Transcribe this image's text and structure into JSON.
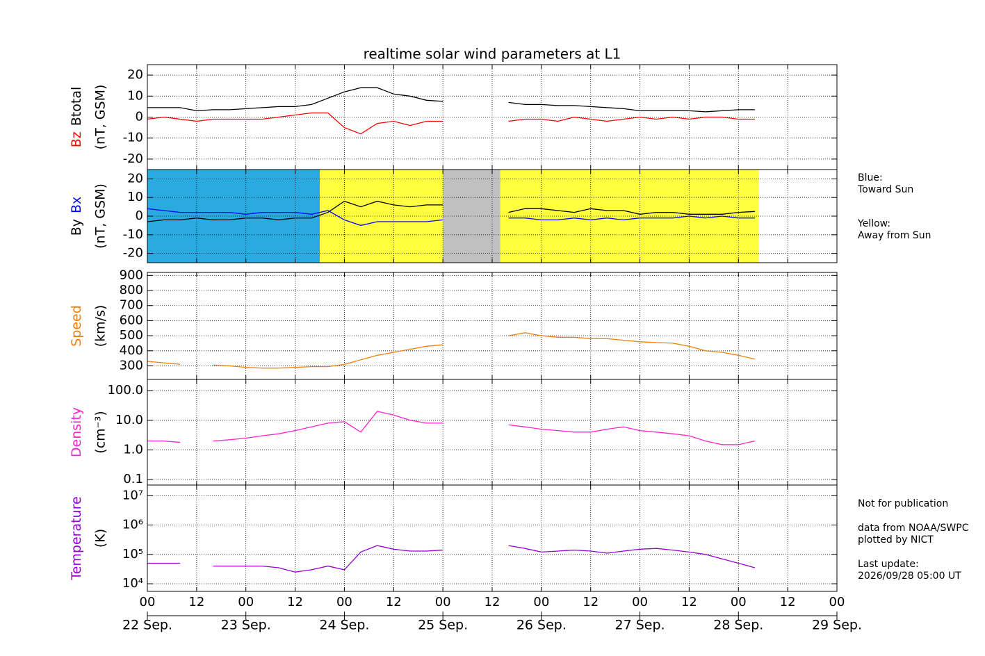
{
  "chart_data": [
    {
      "type": "line",
      "title": "realtime solar wind parameters at L1",
      "ylabel": "(nT, GSM)",
      "x": [
        "22 Sep. 00",
        "22 Sep. 04",
        "22 Sep. 08",
        "22 Sep. 12",
        "22 Sep. 16",
        "22 Sep. 20",
        "23 Sep. 00",
        "23 Sep. 04",
        "23 Sep. 08",
        "23 Sep. 12",
        "23 Sep. 16",
        "23 Sep. 20",
        "24 Sep. 00",
        "24 Sep. 04",
        "24 Sep. 08",
        "24 Sep. 12",
        "24 Sep. 16",
        "24 Sep. 20",
        "25 Sep. 00",
        "25 Sep. 04",
        "25 Sep. 08",
        "25 Sep. 12",
        "25 Sep. 16",
        "25 Sep. 20",
        "26 Sep. 00",
        "26 Sep. 04",
        "26 Sep. 08",
        "26 Sep. 12",
        "26 Sep. 16",
        "26 Sep. 20",
        "27 Sep. 00",
        "27 Sep. 04",
        "27 Sep. 08",
        "27 Sep. 12",
        "27 Sep. 16",
        "27 Sep. 20",
        "28 Sep. 00",
        "28 Sep. 04"
      ],
      "series": [
        {
          "name": "Bz",
          "color": "#ff0000",
          "values": [
            -1,
            0,
            -1,
            -2,
            -1,
            -1,
            -1,
            -1,
            0,
            1,
            2,
            2,
            -5,
            -8,
            -3,
            -2,
            -4,
            -2,
            -2,
            null,
            null,
            null,
            -2,
            -1,
            -1,
            -2,
            0,
            -1,
            -2,
            -1,
            0,
            -1,
            0,
            -1,
            0,
            0,
            -1,
            -1
          ]
        },
        {
          "name": "Btotal",
          "color": "#000000",
          "values": [
            4.5,
            4.5,
            4.5,
            3,
            3.5,
            3.5,
            4,
            4.5,
            5,
            5,
            6,
            9,
            12,
            14,
            14,
            11,
            10,
            8,
            7.5,
            null,
            null,
            null,
            7,
            6,
            6,
            5.5,
            5.5,
            5,
            4.5,
            4,
            3,
            3,
            3,
            3,
            2.5,
            3,
            3.5,
            3.5
          ]
        }
      ],
      "ylim": [
        -25,
        25
      ],
      "yticks": [
        -20,
        -10,
        0,
        10,
        20
      ],
      "grid": true
    },
    {
      "type": "line",
      "ylabel": "(nT, GSM)",
      "x": [
        "22 Sep. 00",
        "22 Sep. 04",
        "22 Sep. 08",
        "22 Sep. 12",
        "22 Sep. 16",
        "22 Sep. 20",
        "23 Sep. 00",
        "23 Sep. 04",
        "23 Sep. 08",
        "23 Sep. 12",
        "23 Sep. 16",
        "23 Sep. 20",
        "24 Sep. 00",
        "24 Sep. 04",
        "24 Sep. 08",
        "24 Sep. 12",
        "24 Sep. 16",
        "24 Sep. 20",
        "25 Sep. 00",
        "25 Sep. 04",
        "25 Sep. 08",
        "25 Sep. 12",
        "25 Sep. 16",
        "25 Sep. 20",
        "26 Sep. 00",
        "26 Sep. 04",
        "26 Sep. 08",
        "26 Sep. 12",
        "26 Sep. 16",
        "26 Sep. 20",
        "27 Sep. 00",
        "27 Sep. 04",
        "27 Sep. 08",
        "27 Sep. 12",
        "27 Sep. 16",
        "27 Sep. 20",
        "28 Sep. 00",
        "28 Sep. 04"
      ],
      "series": [
        {
          "name": "By",
          "color": "#000000",
          "values": [
            -3,
            -2,
            -2,
            -1,
            -2,
            -2,
            -1,
            -1,
            -2,
            -1,
            -1,
            2,
            8,
            5,
            8,
            6,
            5,
            6,
            6,
            null,
            null,
            null,
            2,
            4,
            4,
            3,
            2,
            4,
            3,
            3,
            1,
            2,
            2,
            1,
            1,
            1,
            2,
            2.5
          ]
        },
        {
          "name": "Bx",
          "color": "#0000ff",
          "values": [
            4,
            3,
            2,
            2,
            2,
            2,
            1,
            2,
            2,
            2,
            1,
            3,
            -2,
            -5,
            -3,
            -3,
            -3,
            -3,
            -2,
            null,
            null,
            null,
            -1,
            -1,
            -2,
            -2,
            -1,
            -2,
            -1,
            -2,
            -1,
            -1,
            -1,
            0,
            -1,
            0,
            -1,
            -1
          ]
        }
      ],
      "sectors": [
        {
          "start": "22 Sep. 00",
          "end": "23 Sep. 18",
          "color": "#29abe2"
        },
        {
          "start": "23 Sep. 18",
          "end": "25 Sep. 00",
          "color": "#ffff40"
        },
        {
          "start": "25 Sep. 00",
          "end": "25 Sep. 14",
          "color": "#c0c0c0"
        },
        {
          "start": "25 Sep. 14",
          "end": "28 Sep. 05",
          "color": "#ffff40"
        }
      ],
      "sector_labels": [
        {
          "text": [
            "Blue:",
            "Toward Sun"
          ],
          "color": "#29abe2"
        },
        {
          "text": [
            "Yellow:",
            "Away from Sun"
          ],
          "color": "#000000"
        }
      ],
      "ylim": [
        -25,
        25
      ],
      "yticks": [
        -20,
        -10,
        0,
        10,
        20
      ],
      "grid": true
    },
    {
      "type": "line",
      "ylabel": "(km/s)",
      "x": [
        "22 Sep. 00",
        "22 Sep. 04",
        "22 Sep. 08",
        "22 Sep. 12",
        "22 Sep. 16",
        "22 Sep. 20",
        "23 Sep. 00",
        "23 Sep. 04",
        "23 Sep. 08",
        "23 Sep. 12",
        "23 Sep. 16",
        "23 Sep. 20",
        "24 Sep. 00",
        "24 Sep. 04",
        "24 Sep. 08",
        "24 Sep. 12",
        "24 Sep. 16",
        "24 Sep. 20",
        "25 Sep. 00",
        "25 Sep. 04",
        "25 Sep. 08",
        "25 Sep. 12",
        "25 Sep. 16",
        "25 Sep. 20",
        "26 Sep. 00",
        "26 Sep. 04",
        "26 Sep. 08",
        "26 Sep. 12",
        "26 Sep. 16",
        "26 Sep. 20",
        "27 Sep. 00",
        "27 Sep. 04",
        "27 Sep. 08",
        "27 Sep. 12",
        "27 Sep. 16",
        "27 Sep. 20",
        "28 Sep. 00",
        "28 Sep. 04"
      ],
      "series": [
        {
          "name": "Speed",
          "color": "#f07f10",
          "values": [
            330,
            320,
            310,
            null,
            305,
            300,
            290,
            285,
            285,
            290,
            295,
            295,
            310,
            340,
            370,
            390,
            410,
            430,
            440,
            null,
            null,
            null,
            500,
            520,
            500,
            490,
            490,
            480,
            480,
            470,
            460,
            455,
            450,
            430,
            400,
            390,
            370,
            345
          ]
        }
      ],
      "ylim": [
        210,
        920
      ],
      "yticks": [
        300,
        400,
        500,
        600,
        700,
        800,
        900
      ],
      "grid": true
    },
    {
      "type": "line",
      "ylabel": "(cm⁻³)",
      "log": true,
      "x": [
        "22 Sep. 00",
        "22 Sep. 04",
        "22 Sep. 08",
        "22 Sep. 12",
        "22 Sep. 16",
        "22 Sep. 20",
        "23 Sep. 00",
        "23 Sep. 04",
        "23 Sep. 08",
        "23 Sep. 12",
        "23 Sep. 16",
        "23 Sep. 20",
        "24 Sep. 00",
        "24 Sep. 04",
        "24 Sep. 08",
        "24 Sep. 12",
        "24 Sep. 16",
        "24 Sep. 20",
        "25 Sep. 00",
        "25 Sep. 04",
        "25 Sep. 08",
        "25 Sep. 12",
        "25 Sep. 16",
        "25 Sep. 20",
        "26 Sep. 00",
        "26 Sep. 04",
        "26 Sep. 08",
        "26 Sep. 12",
        "26 Sep. 16",
        "26 Sep. 20",
        "27 Sep. 00",
        "27 Sep. 04",
        "27 Sep. 08",
        "27 Sep. 12",
        "27 Sep. 16",
        "27 Sep. 20",
        "28 Sep. 00",
        "28 Sep. 04"
      ],
      "series": [
        {
          "name": "Density",
          "color": "#ff22cc",
          "values": [
            2,
            2,
            1.8,
            null,
            2,
            2.2,
            2.5,
            3,
            3.5,
            4.5,
            6,
            8,
            9,
            4,
            20,
            15,
            10,
            8,
            8,
            null,
            null,
            null,
            7,
            6,
            5,
            4.5,
            4,
            4,
            5,
            6,
            4.5,
            4,
            3.5,
            3,
            2,
            1.5,
            1.5,
            2
          ]
        }
      ],
      "ylim": [
        0.065,
        240
      ],
      "yticks": [
        0.1,
        {
          "value": 1,
          "label": "1.0"
        },
        {
          "value": 10,
          "label": "10.0"
        },
        {
          "value": 100,
          "label": "100.0"
        }
      ],
      "grid": true
    },
    {
      "type": "line",
      "ylabel": "(K)",
      "log": true,
      "x": [
        "22 Sep. 00",
        "22 Sep. 04",
        "22 Sep. 08",
        "22 Sep. 12",
        "22 Sep. 16",
        "22 Sep. 20",
        "23 Sep. 00",
        "23 Sep. 04",
        "23 Sep. 08",
        "23 Sep. 12",
        "23 Sep. 16",
        "23 Sep. 20",
        "24 Sep. 00",
        "24 Sep. 04",
        "24 Sep. 08",
        "24 Sep. 12",
        "24 Sep. 16",
        "24 Sep. 20",
        "25 Sep. 00",
        "25 Sep. 04",
        "25 Sep. 08",
        "25 Sep. 12",
        "25 Sep. 16",
        "25 Sep. 20",
        "26 Sep. 00",
        "26 Sep. 04",
        "26 Sep. 08",
        "26 Sep. 12",
        "26 Sep. 16",
        "26 Sep. 20",
        "27 Sep. 00",
        "27 Sep. 04",
        "27 Sep. 08",
        "27 Sep. 12",
        "27 Sep. 16",
        "27 Sep. 20",
        "28 Sep. 00",
        "28 Sep. 04"
      ],
      "series": [
        {
          "name": "Temperature",
          "color": "#9400d3",
          "values": [
            50000,
            50000,
            50000,
            null,
            40000,
            40000,
            40000,
            40000,
            35000,
            25000,
            30000,
            40000,
            30000,
            120000,
            200000,
            150000,
            130000,
            130000,
            140000,
            null,
            null,
            null,
            200000,
            160000,
            120000,
            130000,
            140000,
            130000,
            110000,
            130000,
            150000,
            160000,
            140000,
            120000,
            100000,
            70000,
            50000,
            35000
          ]
        }
      ],
      "ylim": [
        5500,
        23000000
      ],
      "yticks": [
        {
          "value": 10000,
          "label": "10⁴"
        },
        {
          "value": 100000,
          "label": "10⁵"
        },
        {
          "value": 1000000,
          "label": "10⁶"
        },
        {
          "value": 10000000,
          "label": "10⁷"
        }
      ],
      "xlim": [
        "22 Sep. 00",
        "29 Sep. 00"
      ],
      "xticks": [
        {
          "value": "22 Sep. 00",
          "label": "00"
        },
        {
          "value": "22 Sep. 12",
          "label": "12"
        },
        {
          "value": "23 Sep. 00",
          "label": "00"
        },
        {
          "value": "23 Sep. 12",
          "label": "12"
        },
        {
          "value": "24 Sep. 00",
          "label": "00"
        },
        {
          "value": "24 Sep. 12",
          "label": "12"
        },
        {
          "value": "25 Sep. 00",
          "label": "00"
        },
        {
          "value": "25 Sep. 12",
          "label": "12"
        },
        {
          "value": "26 Sep. 00",
          "label": "00"
        },
        {
          "value": "26 Sep. 12",
          "label": "12"
        },
        {
          "value": "27 Sep. 00",
          "label": "00"
        },
        {
          "value": "27 Sep. 12",
          "label": "12"
        },
        {
          "value": "28 Sep. 00",
          "label": "00"
        },
        {
          "value": "28 Sep. 12",
          "label": "12"
        },
        {
          "value": "29 Sep. 00",
          "label": "00"
        }
      ],
      "day_ticks": [
        {
          "value": "22 Sep. 00",
          "label": "22 Sep."
        },
        {
          "value": "23 Sep. 00",
          "label": "23 Sep."
        },
        {
          "value": "24 Sep. 00",
          "label": "24 Sep."
        },
        {
          "value": "25 Sep. 00",
          "label": "25 Sep."
        },
        {
          "value": "26 Sep. 00",
          "label": "26 Sep."
        },
        {
          "value": "27 Sep. 00",
          "label": "27 Sep."
        },
        {
          "value": "28 Sep. 00",
          "label": "28 Sep."
        },
        {
          "value": "29 Sep. 00",
          "label": "29 Sep."
        }
      ],
      "grid": true
    }
  ],
  "notes": [
    "Not for publication",
    "data from NOAA/SWPC",
    "plotted by NICT",
    "Last update:",
    "2026/09/28 05:00 UT"
  ]
}
